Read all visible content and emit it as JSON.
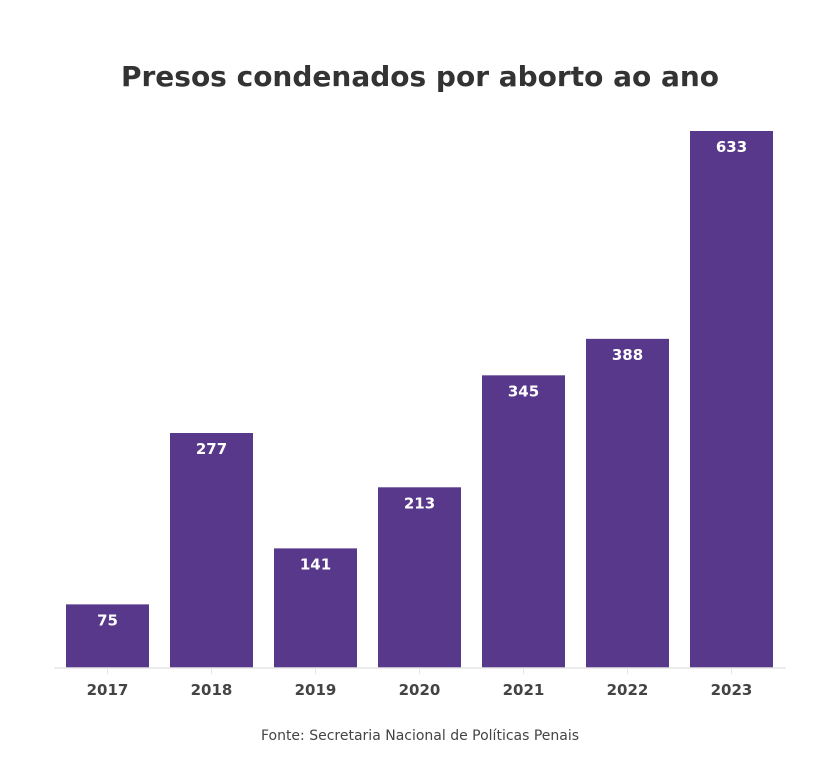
{
  "chart_data": {
    "type": "bar",
    "title": "Presos condenados por aborto ao ano",
    "categories": [
      "2017",
      "2018",
      "2019",
      "2020",
      "2021",
      "2022",
      "2023"
    ],
    "values": [
      75,
      277,
      141,
      213,
      345,
      388,
      633
    ],
    "xlabel": "",
    "ylabel": "",
    "ylim": [
      0,
      633
    ],
    "grid": false,
    "source": "Fonte: Secretaria Nacional de Políticas Penais",
    "bar_color": "#58388a"
  }
}
